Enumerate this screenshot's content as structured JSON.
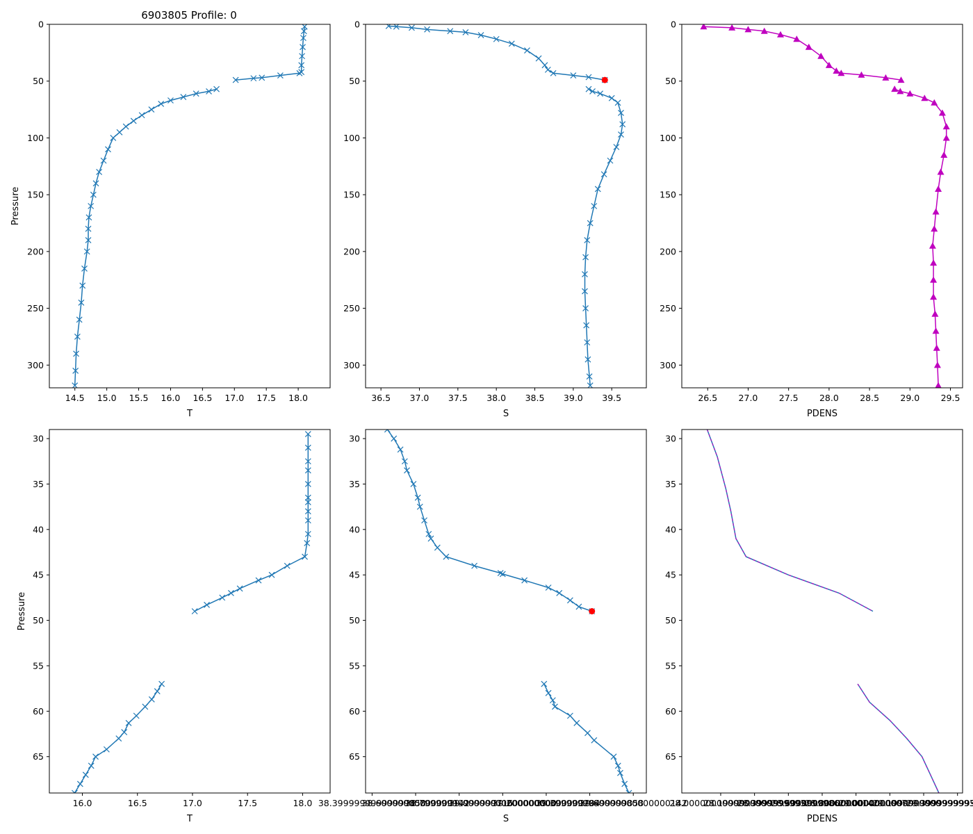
{
  "title": "6903805 Profile: 0",
  "colors": {
    "line": "#1f77b4",
    "pdens": "#bf00bf",
    "flag": "#ff0000",
    "frame": "#000000"
  },
  "chart_data": [
    {
      "id": "T_full",
      "type": "line",
      "marker": "x",
      "xlabel": "T",
      "ylabel": "Pressure",
      "title": "6903805 Profile: 0",
      "xlim": [
        14.1,
        18.5
      ],
      "ylim": [
        320,
        0
      ],
      "xticks": [
        14.5,
        15.0,
        15.5,
        16.0,
        16.5,
        17.0,
        17.5,
        18.0
      ],
      "yticks": [
        0,
        50,
        100,
        150,
        200,
        250,
        300
      ],
      "segments": [
        [
          [
            18.1,
            2
          ],
          [
            18.09,
            6
          ],
          [
            18.08,
            12
          ],
          [
            18.07,
            20
          ],
          [
            18.06,
            28
          ],
          [
            18.05,
            36
          ],
          [
            18.05,
            42
          ],
          [
            18.02,
            43
          ],
          [
            17.72,
            45
          ],
          [
            17.43,
            47
          ],
          [
            17.3,
            47.5
          ],
          [
            17.02,
            49
          ]
        ],
        [
          [
            16.72,
            57
          ],
          [
            16.6,
            59
          ],
          [
            16.4,
            61
          ],
          [
            16.2,
            64
          ],
          [
            16.0,
            67
          ],
          [
            15.85,
            70
          ],
          [
            15.7,
            75
          ],
          [
            15.55,
            80
          ],
          [
            15.42,
            85
          ],
          [
            15.3,
            90
          ],
          [
            15.2,
            95
          ],
          [
            15.1,
            100
          ],
          [
            15.02,
            110
          ],
          [
            14.95,
            120
          ],
          [
            14.88,
            130
          ],
          [
            14.83,
            140
          ],
          [
            14.79,
            150
          ],
          [
            14.75,
            160
          ],
          [
            14.72,
            170
          ],
          [
            14.71,
            180
          ],
          [
            14.71,
            190
          ],
          [
            14.69,
            200
          ],
          [
            14.65,
            215
          ],
          [
            14.62,
            230
          ],
          [
            14.6,
            245
          ],
          [
            14.57,
            260
          ],
          [
            14.54,
            275
          ],
          [
            14.52,
            290
          ],
          [
            14.51,
            305
          ],
          [
            14.5,
            318
          ]
        ]
      ],
      "flags": []
    },
    {
      "id": "S_full",
      "type": "line",
      "marker": "x",
      "xlabel": "S",
      "ylabel": "",
      "xlim": [
        36.3,
        39.95
      ],
      "ylim": [
        320,
        0
      ],
      "xticks": [
        36.5,
        37.0,
        37.5,
        38.0,
        38.5,
        39.0,
        39.5
      ],
      "yticks": [
        0,
        50,
        100,
        150,
        200,
        250,
        300
      ],
      "segments": [
        [
          [
            36.6,
            1.5
          ],
          [
            36.7,
            2
          ],
          [
            36.9,
            3
          ],
          [
            37.1,
            4.5
          ],
          [
            37.4,
            6
          ],
          [
            37.6,
            7
          ],
          [
            37.8,
            9.5
          ],
          [
            38.0,
            13
          ],
          [
            38.2,
            17
          ],
          [
            38.4,
            23
          ],
          [
            38.55,
            30
          ],
          [
            38.63,
            36
          ],
          [
            38.67,
            40
          ],
          [
            38.74,
            43
          ],
          [
            39.0,
            45
          ],
          [
            39.2,
            46.5
          ],
          [
            39.41,
            49
          ]
        ],
        [
          [
            39.2,
            57
          ],
          [
            39.25,
            59
          ],
          [
            39.35,
            61
          ],
          [
            39.5,
            65
          ],
          [
            39.58,
            69
          ],
          [
            39.62,
            78
          ],
          [
            39.64,
            88
          ],
          [
            39.62,
            97
          ],
          [
            39.56,
            108
          ],
          [
            39.48,
            120
          ],
          [
            39.4,
            132
          ],
          [
            39.32,
            145
          ],
          [
            39.27,
            160
          ],
          [
            39.22,
            175
          ],
          [
            39.18,
            190
          ],
          [
            39.16,
            205
          ],
          [
            39.15,
            220
          ],
          [
            39.15,
            235
          ],
          [
            39.16,
            250
          ],
          [
            39.17,
            265
          ],
          [
            39.18,
            280
          ],
          [
            39.19,
            295
          ],
          [
            39.21,
            310
          ],
          [
            39.22,
            318
          ]
        ]
      ],
      "flags": [
        [
          39.41,
          49
        ]
      ]
    },
    {
      "id": "PDENS_full",
      "type": "line",
      "marker": "triangle",
      "xlabel": "PDENS",
      "ylabel": "",
      "xlim": [
        26.18,
        29.65
      ],
      "ylim": [
        320,
        0
      ],
      "xticks": [
        26.5,
        27.0,
        27.5,
        28.0,
        28.5,
        29.0,
        29.5
      ],
      "yticks": [
        0,
        50,
        100,
        150,
        200,
        250,
        300
      ],
      "segments": [
        [
          [
            26.45,
            2
          ],
          [
            26.8,
            3
          ],
          [
            27.0,
            4.5
          ],
          [
            27.2,
            6
          ],
          [
            27.4,
            9
          ],
          [
            27.6,
            13
          ],
          [
            27.75,
            20
          ],
          [
            27.9,
            28
          ],
          [
            28.0,
            36
          ],
          [
            28.09,
            41
          ],
          [
            28.15,
            43
          ],
          [
            28.4,
            44.5
          ],
          [
            28.7,
            47
          ],
          [
            28.89,
            49
          ]
        ],
        [
          [
            28.81,
            57
          ],
          [
            28.88,
            59
          ],
          [
            29.0,
            61
          ],
          [
            29.18,
            65
          ],
          [
            29.3,
            69
          ],
          [
            29.4,
            78
          ],
          [
            29.45,
            90
          ],
          [
            29.45,
            100
          ],
          [
            29.42,
            115
          ],
          [
            29.38,
            130
          ],
          [
            29.35,
            145
          ],
          [
            29.32,
            165
          ],
          [
            29.3,
            180
          ],
          [
            29.28,
            195
          ],
          [
            29.29,
            210
          ],
          [
            29.29,
            225
          ],
          [
            29.29,
            240
          ],
          [
            29.31,
            255
          ],
          [
            29.32,
            270
          ],
          [
            29.33,
            285
          ],
          [
            29.34,
            300
          ],
          [
            29.35,
            318
          ]
        ]
      ],
      "flags": []
    },
    {
      "id": "T_zoom",
      "type": "line",
      "marker": "x",
      "xlabel": "T",
      "ylabel": "Pressure",
      "xlim": [
        15.7,
        18.25
      ],
      "ylim": [
        69,
        29
      ],
      "xticks": [
        16.0,
        16.5,
        17.0,
        17.5,
        18.0
      ],
      "yticks": [
        30,
        35,
        40,
        45,
        50,
        55,
        60,
        65
      ],
      "segments": [
        [
          [
            18.05,
            29.5
          ],
          [
            18.05,
            31
          ],
          [
            18.05,
            32.5
          ],
          [
            18.05,
            33.5
          ],
          [
            18.05,
            35
          ],
          [
            18.05,
            36.5
          ],
          [
            18.05,
            37
          ],
          [
            18.05,
            38
          ],
          [
            18.05,
            39
          ],
          [
            18.05,
            40.5
          ],
          [
            18.04,
            41.5
          ],
          [
            18.02,
            43
          ],
          [
            17.86,
            44
          ],
          [
            17.72,
            45
          ],
          [
            17.6,
            45.6
          ],
          [
            17.43,
            46.5
          ],
          [
            17.35,
            47
          ],
          [
            17.27,
            47.5
          ],
          [
            17.13,
            48.3
          ],
          [
            17.02,
            49
          ]
        ],
        [
          [
            16.72,
            57
          ],
          [
            16.68,
            57.8
          ],
          [
            16.63,
            58.7
          ],
          [
            16.57,
            59.5
          ],
          [
            16.49,
            60.5
          ],
          [
            16.42,
            61.3
          ],
          [
            16.38,
            62.3
          ],
          [
            16.33,
            63
          ],
          [
            16.22,
            64.2
          ],
          [
            16.12,
            65
          ],
          [
            16.08,
            66
          ],
          [
            16.03,
            67
          ],
          [
            15.98,
            68
          ],
          [
            15.93,
            69
          ]
        ]
      ],
      "flags": []
    },
    {
      "id": "S_zoom",
      "type": "line",
      "marker": "x",
      "xlabel": "S",
      "ylabel": "",
      "xlim": [
        38.37,
        39.66
      ],
      "ylim": [
        69,
        29
      ],
      "xticks": [
        38.4,
        38.6,
        38.8,
        39.0,
        39.2,
        39.4,
        39.6
      ],
      "yticks": [
        30,
        35,
        40,
        45,
        50,
        55,
        60,
        65
      ],
      "segments": [
        [
          [
            38.47,
            29
          ],
          [
            38.5,
            30
          ],
          [
            38.53,
            31.2
          ],
          [
            38.55,
            32.5
          ],
          [
            38.56,
            33.5
          ],
          [
            38.59,
            35
          ],
          [
            38.61,
            36.5
          ],
          [
            38.62,
            37.5
          ],
          [
            38.64,
            39
          ],
          [
            38.66,
            40.5
          ],
          [
            38.67,
            41
          ],
          [
            38.7,
            42
          ],
          [
            38.74,
            43
          ],
          [
            38.87,
            44
          ],
          [
            38.99,
            44.8
          ],
          [
            39.0,
            44.9
          ],
          [
            39.1,
            45.6
          ],
          [
            39.21,
            46.4
          ],
          [
            39.26,
            47
          ],
          [
            39.31,
            47.8
          ],
          [
            39.35,
            48.5
          ],
          [
            39.41,
            49
          ]
        ],
        [
          [
            39.19,
            57
          ],
          [
            39.21,
            58
          ],
          [
            39.23,
            58.8
          ],
          [
            39.24,
            59.5
          ],
          [
            39.31,
            60.5
          ],
          [
            39.34,
            61.3
          ],
          [
            39.39,
            62.4
          ],
          [
            39.42,
            63.2
          ],
          [
            39.51,
            65
          ],
          [
            39.53,
            66
          ],
          [
            39.54,
            66.8
          ],
          [
            39.56,
            68
          ],
          [
            39.58,
            69
          ]
        ]
      ],
      "flags": [
        [
          39.41,
          49
        ]
      ]
    },
    {
      "id": "PDENS_zoom",
      "type": "line",
      "marker": "none",
      "xlabel": "PDENS",
      "ylabel": "",
      "xlim": [
        27.77,
        29.43
      ],
      "ylim": [
        69,
        29
      ],
      "xticks": [
        28.0,
        28.2,
        28.4,
        28.6,
        28.8,
        29.0,
        29.2,
        29.4
      ],
      "yticks": [
        30,
        35,
        40,
        45,
        50,
        55,
        60,
        65
      ],
      "segments": [
        [
          [
            27.92,
            29
          ],
          [
            27.98,
            32
          ],
          [
            28.03,
            35.5
          ],
          [
            28.06,
            38
          ],
          [
            28.09,
            41
          ],
          [
            28.15,
            43
          ],
          [
            28.4,
            45
          ],
          [
            28.7,
            47
          ],
          [
            28.9,
            49
          ]
        ],
        [
          [
            28.81,
            57
          ],
          [
            28.88,
            59
          ],
          [
            29.0,
            61
          ],
          [
            29.1,
            63
          ],
          [
            29.19,
            65
          ],
          [
            29.24,
            67
          ],
          [
            29.29,
            69
          ]
        ]
      ],
      "flags": []
    }
  ]
}
